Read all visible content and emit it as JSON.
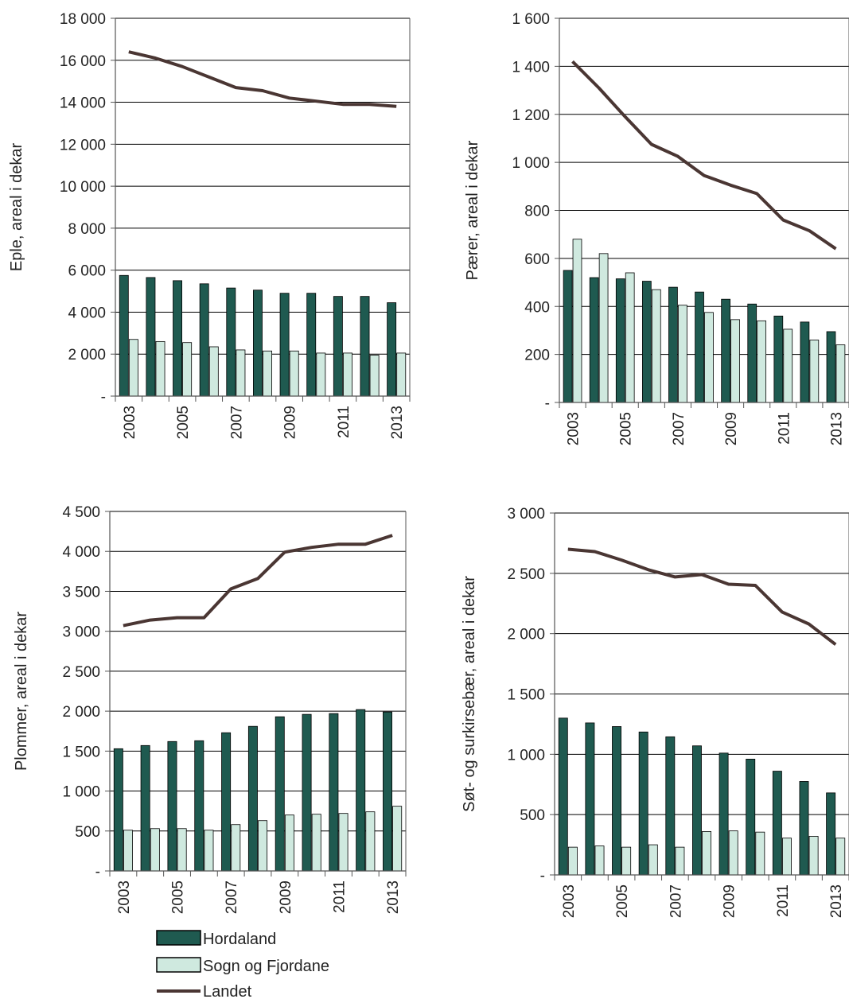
{
  "colors": {
    "hordaland": "#1f5a50",
    "sogn": "#cfe9df",
    "landet": "#4a3633",
    "grid": "#000000",
    "axis": "#555555"
  },
  "legend": {
    "hordaland": "Hordaland",
    "sogn": "Sogn og Fjordane",
    "landet": "Landet"
  },
  "chart_data": [
    {
      "type": "bar",
      "ylabel": "Eple, areal i dekar",
      "ylim": [
        0,
        18000
      ],
      "yticks": [
        0,
        2000,
        4000,
        6000,
        8000,
        10000,
        12000,
        14000,
        16000,
        18000
      ],
      "ytick_labels": [
        "-",
        "2 000",
        "4 000",
        "6 000",
        "8 000",
        "10 000",
        "12 000",
        "14 000",
        "16 000",
        "18 000"
      ],
      "categories": [
        "2003",
        "2004",
        "2005",
        "2006",
        "2007",
        "2008",
        "2009",
        "2010",
        "2011",
        "2012",
        "2013"
      ],
      "xtick_labels": [
        "2003",
        "2005",
        "2007",
        "2009",
        "2011",
        "2013"
      ],
      "grid": true,
      "series": [
        {
          "name": "Hordaland",
          "kind": "bar",
          "values": [
            5750,
            5650,
            5500,
            5350,
            5150,
            5050,
            4900,
            4900,
            4750,
            4750,
            4450
          ]
        },
        {
          "name": "Sogn og Fjordane",
          "kind": "bar",
          "values": [
            2700,
            2600,
            2550,
            2350,
            2200,
            2150,
            2150,
            2050,
            2050,
            1950,
            2050
          ]
        },
        {
          "name": "Landet",
          "kind": "line",
          "values": [
            16400,
            16100,
            15700,
            15200,
            14700,
            14550,
            14200,
            14050,
            13900,
            13900,
            13800
          ]
        }
      ]
    },
    {
      "type": "bar",
      "ylabel": "Pærer, areal i dekar",
      "ylim": [
        0,
        1600
      ],
      "yticks": [
        0,
        200,
        400,
        600,
        800,
        1000,
        1200,
        1400,
        1600
      ],
      "ytick_labels": [
        "-",
        "200",
        "400",
        "600",
        "800",
        "1 000",
        "1 200",
        "1 400",
        "1 600"
      ],
      "categories": [
        "2003",
        "2004",
        "2005",
        "2006",
        "2007",
        "2008",
        "2009",
        "2010",
        "2011",
        "2012",
        "2013"
      ],
      "xtick_labels": [
        "2003",
        "2005",
        "2007",
        "2009",
        "2011",
        "2013"
      ],
      "grid": true,
      "series": [
        {
          "name": "Hordaland",
          "kind": "bar",
          "values": [
            550,
            520,
            515,
            505,
            480,
            460,
            430,
            410,
            360,
            335,
            295
          ]
        },
        {
          "name": "Sogn og Fjordane",
          "kind": "bar",
          "values": [
            680,
            620,
            540,
            470,
            405,
            375,
            345,
            340,
            305,
            260,
            240
          ]
        },
        {
          "name": "Landet",
          "kind": "line",
          "values": [
            1420,
            1310,
            1190,
            1075,
            1025,
            945,
            905,
            870,
            760,
            715,
            640
          ]
        }
      ]
    },
    {
      "type": "bar",
      "ylabel": "Plommer, areal i dekar",
      "ylim": [
        0,
        4500
      ],
      "yticks": [
        0,
        500,
        1000,
        1500,
        2000,
        2500,
        3000,
        3500,
        4000,
        4500
      ],
      "ytick_labels": [
        "-",
        "500",
        "1 000",
        "1 500",
        "2 000",
        "2 500",
        "3 000",
        "3 500",
        "4 000",
        "4 500"
      ],
      "categories": [
        "2003",
        "2004",
        "2005",
        "2006",
        "2007",
        "2008",
        "2009",
        "2010",
        "2011",
        "2012",
        "2013"
      ],
      "xtick_labels": [
        "2003",
        "2005",
        "2007",
        "2009",
        "2011",
        "2013"
      ],
      "grid": true,
      "series": [
        {
          "name": "Hordaland",
          "kind": "bar",
          "values": [
            1530,
            1570,
            1620,
            1630,
            1730,
            1810,
            1930,
            1960,
            1970,
            2020,
            1990
          ]
        },
        {
          "name": "Sogn og Fjordane",
          "kind": "bar",
          "values": [
            510,
            530,
            530,
            510,
            580,
            630,
            700,
            710,
            720,
            740,
            810
          ]
        },
        {
          "name": "Landet",
          "kind": "line",
          "values": [
            3070,
            3140,
            3170,
            3170,
            3530,
            3660,
            3990,
            4050,
            4090,
            4090,
            4200
          ]
        }
      ]
    },
    {
      "type": "bar",
      "ylabel": "Søt- og surkirsebær, areal i dekar",
      "ylim": [
        0,
        3000
      ],
      "yticks": [
        0,
        500,
        1000,
        1500,
        2000,
        2500,
        3000
      ],
      "ytick_labels": [
        "-",
        "500",
        "1 000",
        "1 500",
        "2 000",
        "2 500",
        "3 000"
      ],
      "categories": [
        "2003",
        "2004",
        "2005",
        "2006",
        "2007",
        "2008",
        "2009",
        "2010",
        "2011",
        "2012",
        "2013"
      ],
      "xtick_labels": [
        "2003",
        "2005",
        "2007",
        "2009",
        "2011",
        "2013"
      ],
      "grid": true,
      "series": [
        {
          "name": "Hordaland",
          "kind": "bar",
          "values": [
            1300,
            1260,
            1230,
            1185,
            1145,
            1070,
            1010,
            960,
            860,
            775,
            680
          ]
        },
        {
          "name": "Sogn og Fjordane",
          "kind": "bar",
          "values": [
            230,
            240,
            230,
            250,
            230,
            360,
            365,
            355,
            305,
            320,
            305
          ]
        },
        {
          "name": "Landet",
          "kind": "line",
          "values": [
            2700,
            2680,
            2610,
            2530,
            2470,
            2490,
            2410,
            2400,
            2180,
            2080,
            1910
          ]
        }
      ]
    }
  ]
}
